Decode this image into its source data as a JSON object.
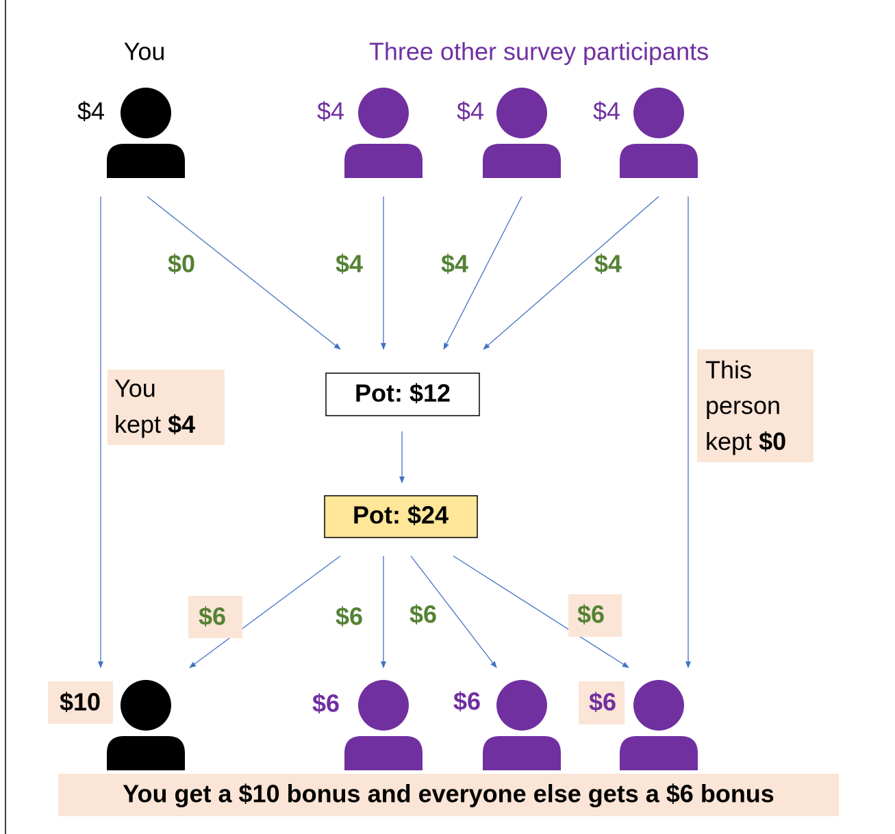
{
  "header": {
    "you": "You",
    "others": "Three other survey participants"
  },
  "top_amounts": [
    "$4",
    "$4",
    "$4",
    "$4"
  ],
  "contributions": [
    "$0",
    "$4",
    "$4",
    "$4"
  ],
  "pot": "Pot: $12",
  "pot_doubled": "Pot: $24",
  "notes": [
    {
      "lines": [
        "You",
        "kept"
      ],
      "amount": "$4"
    },
    {
      "lines": [
        "This",
        "person",
        "kept"
      ],
      "amount": "$0"
    }
  ],
  "payouts": [
    "$6",
    "$6",
    "$6",
    "$6"
  ],
  "bottom_amounts": [
    "$10",
    "$6",
    "$6",
    "$6"
  ],
  "summary": "You get a $10 bonus and everyone else gets a $6 bonus"
}
